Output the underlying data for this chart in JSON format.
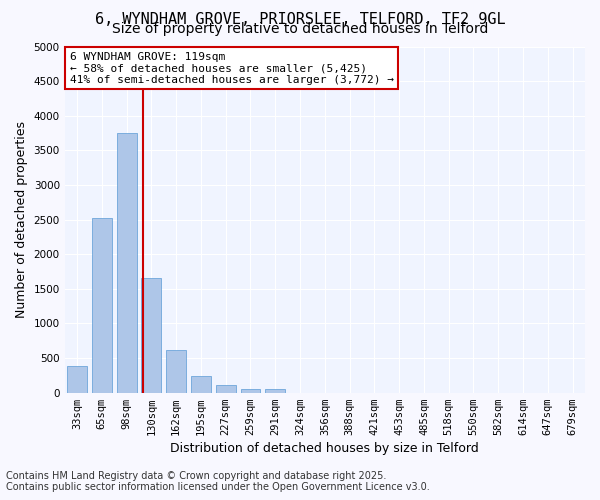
{
  "title_line1": "6, WYNDHAM GROVE, PRIORSLEE, TELFORD, TF2 9GL",
  "title_line2": "Size of property relative to detached houses in Telford",
  "xlabel": "Distribution of detached houses by size in Telford",
  "ylabel": "Number of detached properties",
  "categories": [
    "33sqm",
    "65sqm",
    "98sqm",
    "130sqm",
    "162sqm",
    "195sqm",
    "227sqm",
    "259sqm",
    "291sqm",
    "324sqm",
    "356sqm",
    "388sqm",
    "421sqm",
    "453sqm",
    "485sqm",
    "518sqm",
    "550sqm",
    "582sqm",
    "614sqm",
    "647sqm",
    "679sqm"
  ],
  "values": [
    380,
    2530,
    3750,
    1650,
    620,
    240,
    105,
    60,
    55,
    0,
    0,
    0,
    0,
    0,
    0,
    0,
    0,
    0,
    0,
    0,
    0
  ],
  "bar_color": "#aec6e8",
  "bar_edge_color": "#5b9bd5",
  "vline_x": 3,
  "vline_color": "#cc0000",
  "annotation_title": "6 WYNDHAM GROVE: 119sqm",
  "annotation_line2": "← 58% of detached houses are smaller (5,425)",
  "annotation_line3": "41% of semi-detached houses are larger (3,772) →",
  "annotation_box_color": "#cc0000",
  "background_color": "#f0f4ff",
  "grid_color": "#ffffff",
  "ylim": [
    0,
    5000
  ],
  "yticks": [
    0,
    500,
    1000,
    1500,
    2000,
    2500,
    3000,
    3500,
    4000,
    4500,
    5000
  ],
  "footer_line1": "Contains HM Land Registry data © Crown copyright and database right 2025.",
  "footer_line2": "Contains public sector information licensed under the Open Government Licence v3.0.",
  "title_fontsize": 11,
  "subtitle_fontsize": 10,
  "axis_label_fontsize": 9,
  "tick_fontsize": 7.5,
  "annotation_fontsize": 8,
  "footer_fontsize": 7
}
